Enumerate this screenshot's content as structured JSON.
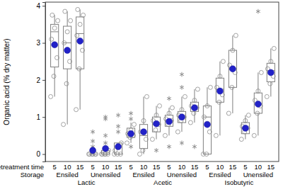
{
  "chart_data": {
    "type": "box",
    "y_label": "Organic acid (% dry matter)",
    "ylim": [
      -0.2,
      4.1
    ],
    "yticks": [
      0,
      1,
      2,
      3,
      4
    ],
    "x_label": "Pretreatment time",
    "storage_label": "Storage",
    "categories": [
      "5",
      "10",
      "15",
      "5",
      "10",
      "15",
      "5",
      "10",
      "15",
      "5",
      "10",
      "15",
      "5",
      "10",
      "15",
      "5",
      "10",
      "15"
    ],
    "storage": [
      "Ensiled",
      "Unensiled",
      "Ensiled",
      "Unensiled",
      "Ensiled",
      "Unensiled"
    ],
    "acids": [
      "Lactic",
      "Acetic",
      "Isobutyric"
    ],
    "color": "#7f7f7f",
    "mean_color": "#2222c8",
    "boxes": [
      {
        "low": 1.55,
        "q1": 2.35,
        "median": 3.3,
        "q3": 3.5,
        "high": 3.75,
        "mean": 2.95,
        "outliers": [],
        "points": [
          1.55,
          2.1,
          2.6,
          3.1,
          3.4,
          3.6,
          3.75
        ]
      },
      {
        "low": 0.8,
        "q1": 2.3,
        "median": 3.0,
        "q3": 3.45,
        "high": 3.85,
        "mean": 2.8,
        "outliers": [],
        "points": [
          0.8,
          1.9,
          2.5,
          3.0,
          3.3,
          3.6,
          3.85
        ]
      },
      {
        "low": 1.2,
        "q1": 2.3,
        "median": 3.25,
        "q3": 3.7,
        "high": 3.9,
        "mean": 3.05,
        "outliers": [],
        "points": [
          1.2,
          2.3,
          2.8,
          3.2,
          3.5,
          3.75,
          3.9
        ]
      },
      {
        "low": 0,
        "q1": 0,
        "median": 0,
        "q3": 0,
        "high": 0,
        "mean": 0.1,
        "outliers": [
          0.2,
          0.35,
          0.6
        ],
        "points": [
          0,
          0,
          0,
          0,
          0,
          0
        ]
      },
      {
        "low": 0,
        "q1": 0,
        "median": 0,
        "q3": 0.1,
        "high": 0.1,
        "mean": 0.15,
        "outliers": [
          0.3,
          0.5,
          0.95,
          1.0
        ],
        "points": [
          0,
          0,
          0,
          0,
          0,
          0.1
        ]
      },
      {
        "low": 0,
        "q1": 0,
        "median": 0,
        "q3": 0.3,
        "high": 0.3,
        "mean": 0.2,
        "outliers": [
          0.6,
          0.75,
          1.05
        ],
        "points": [
          0,
          0,
          0,
          0.1,
          0.2,
          0.3
        ]
      },
      {
        "low": 0.3,
        "q1": 0.45,
        "median": 0.55,
        "q3": 0.7,
        "high": 0.85,
        "mean": 0.55,
        "outliers": [
          0.2,
          0.95,
          1.1
        ],
        "points": [
          0.3,
          0.45,
          0.5,
          0.55,
          0.65,
          0.8
        ]
      },
      {
        "low": 0,
        "q1": 0.15,
        "median": 0.5,
        "q3": 0.8,
        "high": 1.55,
        "mean": 0.6,
        "outliers": [],
        "points": [
          0,
          0.1,
          0.4,
          0.6,
          0.9,
          1.55
        ]
      },
      {
        "low": 0.4,
        "q1": 0.6,
        "median": 0.8,
        "q3": 1.0,
        "high": 1.3,
        "mean": 0.82,
        "outliers": [
          0.1
        ],
        "points": [
          0.4,
          0.65,
          0.8,
          0.9,
          1.05,
          1.3
        ]
      },
      {
        "low": 0.5,
        "q1": 0.75,
        "median": 0.9,
        "q3": 1.05,
        "high": 1.25,
        "mean": 0.88,
        "outliers": [
          0.2,
          1.5
        ],
        "points": [
          0.5,
          0.8,
          0.9,
          0.95,
          1.1,
          1.25
        ]
      },
      {
        "low": 0.6,
        "q1": 0.85,
        "median": 1.0,
        "q3": 1.15,
        "high": 1.55,
        "mean": 1.0,
        "outliers": [
          0.3,
          1.8,
          2.15
        ],
        "points": [
          0.6,
          0.9,
          1.0,
          1.05,
          1.2,
          1.55
        ]
      },
      {
        "low": 0.85,
        "q1": 1.15,
        "median": 1.25,
        "q3": 1.4,
        "high": 1.75,
        "mean": 1.25,
        "outliers": [
          0.2
        ],
        "points": [
          0.85,
          1.1,
          1.25,
          1.3,
          1.45,
          1.75
        ]
      },
      {
        "low": 0,
        "q1": 0,
        "median": 1.0,
        "q3": 1.3,
        "high": 1.8,
        "mean": 0.8,
        "outliers": [],
        "points": [
          0,
          0,
          0.6,
          1.0,
          1.3,
          1.8
        ]
      },
      {
        "low": 0.5,
        "q1": 1.4,
        "median": 1.75,
        "q3": 2.05,
        "high": 2.5,
        "mean": 1.7,
        "outliers": [],
        "points": [
          0.5,
          1.4,
          1.6,
          1.8,
          2.1,
          2.5
        ]
      },
      {
        "low": 1.1,
        "q1": 1.8,
        "median": 2.3,
        "q3": 2.8,
        "high": 3.2,
        "mean": 2.3,
        "outliers": [],
        "points": [
          1.1,
          1.8,
          2.2,
          2.4,
          2.8,
          3.2
        ]
      },
      {
        "low": 0.4,
        "q1": 0.55,
        "median": 0.7,
        "q3": 0.85,
        "high": 1.05,
        "mean": 0.7,
        "outliers": [],
        "points": [
          0.4,
          0.6,
          0.7,
          0.75,
          0.9,
          1.05
        ]
      },
      {
        "low": 0.5,
        "q1": 1.1,
        "median": 1.35,
        "q3": 1.65,
        "high": 2.2,
        "mean": 1.35,
        "outliers": [
          3.85
        ],
        "points": [
          0.5,
          1.1,
          1.3,
          1.45,
          1.7,
          2.2
        ]
      },
      {
        "low": 1.55,
        "q1": 1.95,
        "median": 2.25,
        "q3": 2.45,
        "high": 2.85,
        "mean": 2.2,
        "outliers": [],
        "points": [
          1.55,
          1.9,
          2.1,
          2.3,
          2.5,
          2.85
        ]
      }
    ]
  }
}
